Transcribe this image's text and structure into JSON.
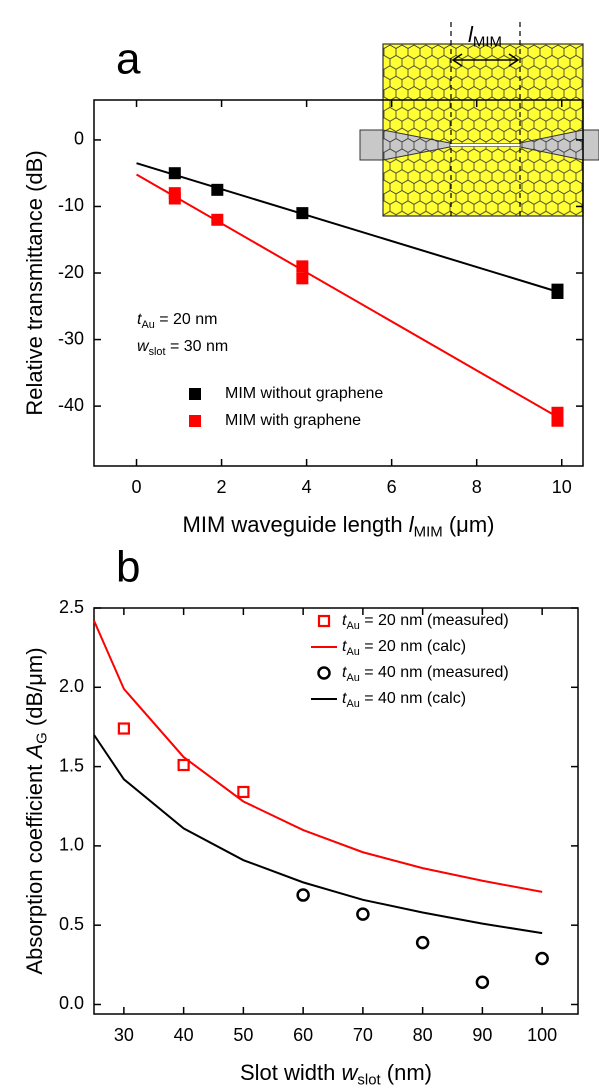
{
  "chart_data": [
    {
      "type": "scatter",
      "panel_label": "a",
      "xlabel": [
        {
          "text": "MIM waveguide length "
        },
        {
          "text": "l",
          "italic": true
        },
        {
          "text": "MIM",
          "sub": true
        },
        {
          "text": " (μm)"
        }
      ],
      "ylabel": [
        {
          "text": "Relative transmittance (dB)"
        }
      ],
      "inset_label": [
        {
          "text": "l",
          "italic": true
        },
        {
          "text": "MIM",
          "sub": true
        }
      ],
      "xlim": [
        -1,
        10.5
      ],
      "ylim": [
        -49,
        6
      ],
      "xticks": [
        0,
        2,
        4,
        6,
        8,
        10
      ],
      "yticks": [
        -40,
        -30,
        -20,
        -10,
        0
      ],
      "legend": "lower left",
      "annotations": [
        [
          {
            "text": "t",
            "italic": true
          },
          {
            "text": "Au",
            "sub": true
          },
          {
            "text": " = 20 nm"
          }
        ],
        [
          {
            "text": "w",
            "italic": true
          },
          {
            "text": "slot",
            "sub": true
          },
          {
            "text": " = 30 nm"
          }
        ]
      ],
      "series": [
        {
          "mode": "lines",
          "color": "#000000",
          "x": [
            0,
            10
          ],
          "values": [
            -3.5,
            -23
          ]
        },
        {
          "mode": "lines",
          "color": "#ff0000",
          "x": [
            0,
            10
          ],
          "values": [
            -5.2,
            -42
          ]
        },
        {
          "name": [
            {
              "text": "MIM without graphene"
            }
          ],
          "mode": "markers",
          "marker": "square",
          "color": "#000000",
          "x": [
            0.9,
            1.9,
            3.9,
            9.9,
            9.9
          ],
          "values": [
            -5,
            -7.5,
            -11,
            -22.5,
            -23
          ]
        },
        {
          "name": [
            {
              "text": "MIM with graphene"
            }
          ],
          "mode": "markers",
          "marker": "square",
          "color": "#ff0000",
          "x": [
            0.9,
            0.9,
            1.9,
            3.9,
            3.9,
            9.9,
            9.9
          ],
          "values": [
            -8,
            -8.8,
            -12,
            -19,
            -20.8,
            -41,
            -42.2
          ]
        }
      ]
    },
    {
      "type": "scatter",
      "panel_label": "b",
      "xlabel": [
        {
          "text": "Slot width "
        },
        {
          "text": "w",
          "italic": true
        },
        {
          "text": "slot",
          "sub": true
        },
        {
          "text": " (nm)"
        }
      ],
      "ylabel": [
        {
          "text": "Absorption coefficient "
        },
        {
          "text": "A",
          "italic": true
        },
        {
          "text": "G",
          "sub": true
        },
        {
          "text": " (dB/μm)"
        }
      ],
      "xlim": [
        25,
        106
      ],
      "ylim": [
        -0.06,
        2.5
      ],
      "xticks": [
        30,
        40,
        50,
        60,
        70,
        80,
        90,
        100
      ],
      "yticks": [
        {
          "value": 0,
          "label": "0.0"
        },
        0.5,
        {
          "value": 1,
          "label": "1.0"
        },
        1.5,
        {
          "value": 2,
          "label": "2.0"
        },
        2.5
      ],
      "legend": "upper right",
      "series": [
        {
          "name": [
            {
              "text": "t",
              "italic": true
            },
            {
              "text": "Au",
              "sub": true
            },
            {
              "text": " = 20 nm (measured)"
            }
          ],
          "mode": "markers",
          "marker": "open-square",
          "color": "#ff0000",
          "x": [
            30,
            40,
            50
          ],
          "values": [
            1.74,
            1.51,
            1.34
          ]
        },
        {
          "name": [
            {
              "text": "t",
              "italic": true
            },
            {
              "text": "Au",
              "sub": true
            },
            {
              "text": " = 20 nm (calc)"
            }
          ],
          "mode": "lines",
          "color": "#ff0000",
          "x": [
            25,
            30,
            40,
            50,
            60,
            70,
            80,
            90,
            100
          ],
          "values": [
            2.42,
            1.99,
            1.56,
            1.28,
            1.1,
            0.96,
            0.86,
            0.78,
            0.71
          ]
        },
        {
          "name": [
            {
              "text": "t",
              "italic": true
            },
            {
              "text": "Au",
              "sub": true
            },
            {
              "text": " = 40 nm (measured)"
            }
          ],
          "mode": "markers",
          "marker": "open-circle",
          "color": "#000000",
          "x": [
            60,
            70,
            80,
            90,
            100
          ],
          "values": [
            0.69,
            0.57,
            0.39,
            0.14,
            0.29
          ]
        },
        {
          "name": [
            {
              "text": "t",
              "italic": true
            },
            {
              "text": "Au",
              "sub": true
            },
            {
              "text": " = 40 nm (calc)"
            }
          ],
          "mode": "lines",
          "color": "#000000",
          "x": [
            25,
            30,
            40,
            50,
            60,
            70,
            80,
            90,
            100
          ],
          "values": [
            1.7,
            1.42,
            1.11,
            0.91,
            0.77,
            0.66,
            0.58,
            0.51,
            0.45
          ]
        }
      ]
    }
  ]
}
